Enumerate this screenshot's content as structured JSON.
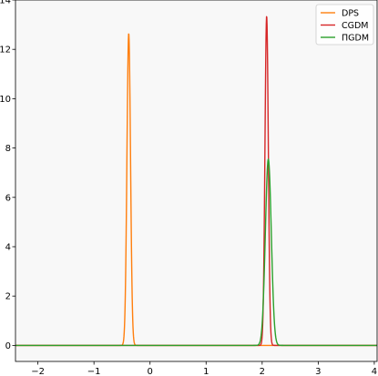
{
  "chart_data": {
    "type": "line",
    "title": "",
    "xlabel": "",
    "ylabel": "",
    "xlim": [
      -2.4,
      4.05
    ],
    "ylim": [
      -0.65,
      14.0
    ],
    "x_ticks": [
      -2,
      -1,
      0,
      1,
      2,
      3,
      4
    ],
    "y_ticks": [
      0,
      2,
      4,
      6,
      8,
      10,
      12,
      14
    ],
    "grid": false,
    "background": "#f8f8f8",
    "legend_position": "top-right",
    "series": [
      {
        "name": "DPS",
        "color": "#ff7f0e",
        "shape": "gaussian",
        "center": -0.38,
        "peak": 12.65,
        "width_sigma": 0.032
      },
      {
        "name": "CGDM",
        "color": "#d62728",
        "shape": "gaussian",
        "center": 2.08,
        "peak": 13.35,
        "width_sigma": 0.03
      },
      {
        "name": "ΠGDM",
        "color": "#2ca02c",
        "shape": "gaussian",
        "center": 2.11,
        "peak": 7.55,
        "width_sigma": 0.053
      }
    ]
  }
}
